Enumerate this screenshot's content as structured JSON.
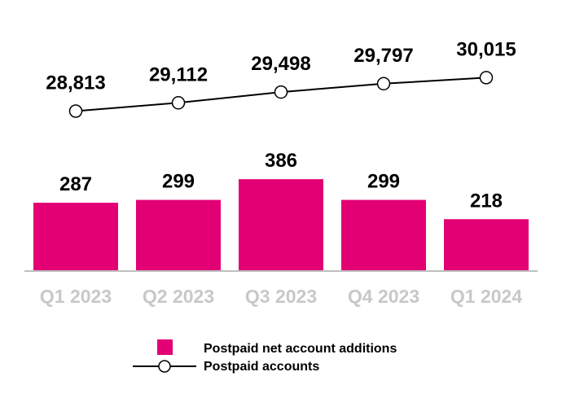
{
  "chart_data": {
    "type": "bar",
    "categories": [
      "Q1 2023",
      "Q2 2023",
      "Q3 2023",
      "Q4 2023",
      "Q1 2024"
    ],
    "series": [
      {
        "name": "Postpaid net account additions",
        "type": "bar",
        "values": [
          287,
          299,
          386,
          299,
          218
        ],
        "value_labels": [
          "287",
          "299",
          "386",
          "299",
          "218"
        ],
        "color": "#e20074"
      },
      {
        "name": "Postpaid accounts",
        "type": "line",
        "values": [
          28813,
          29112,
          29498,
          29797,
          30015
        ],
        "value_labels": [
          "28,813",
          "29,112",
          "29,498",
          "29,797",
          "30,015"
        ],
        "color": "#000000"
      }
    ],
    "grid": false,
    "legend_position": "bottom"
  },
  "colors": {
    "bar": "#e20074",
    "axis": "#bfbfbf",
    "category_label": "#c8c8c8",
    "line": "#000000"
  }
}
